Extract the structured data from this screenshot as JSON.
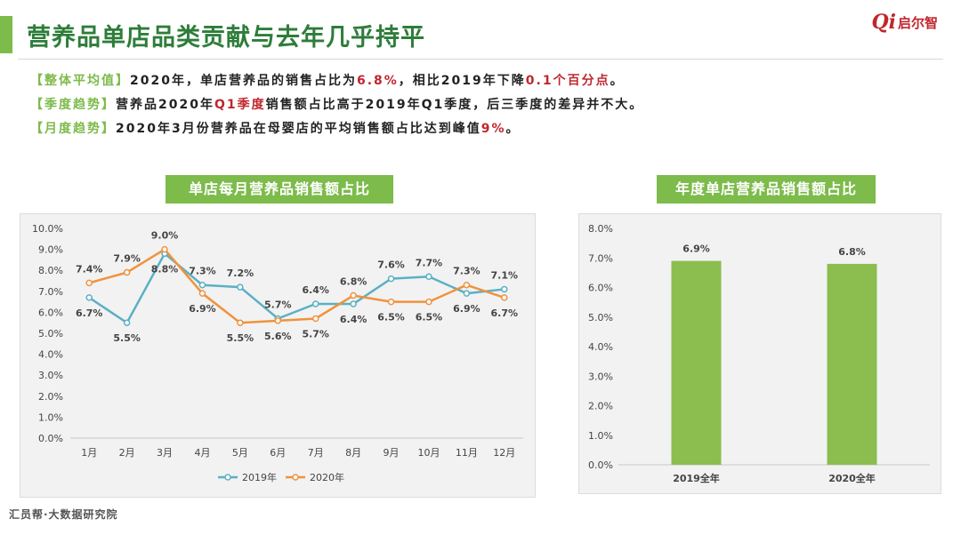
{
  "title": "营养品单店品类贡献与去年几乎持平",
  "logo": {
    "mark": "Qi",
    "text": "启尔智"
  },
  "summary": [
    {
      "tag": "【整体平均值】",
      "parts": [
        {
          "t": "2020年，单店营养品的销售占比为",
          "hl": false
        },
        {
          "t": "6.8%",
          "hl": true
        },
        {
          "t": "，相比2019年下降",
          "hl": false
        },
        {
          "t": "0.1个百分点",
          "hl": true
        },
        {
          "t": "。",
          "hl": false
        }
      ]
    },
    {
      "tag": "【季度趋势】",
      "parts": [
        {
          "t": "营养品2020年",
          "hl": false
        },
        {
          "t": "Q1季度",
          "hl": true
        },
        {
          "t": "销售额占比高于2019年Q1季度，后三季度的差异并不大。",
          "hl": false
        }
      ]
    },
    {
      "tag": "【月度趋势】",
      "parts": [
        {
          "t": "2020年3月份营养品在母婴店的平均销售额占比达到峰值",
          "hl": false
        },
        {
          "t": "9%",
          "hl": true
        },
        {
          "t": "。",
          "hl": false
        }
      ]
    }
  ],
  "watermark": "汇员帮",
  "footer": "汇员帮·大数据研究院",
  "colors": {
    "green": "#7dbb4b",
    "red": "#c0272d",
    "blue": "#5bb0c4",
    "orange": "#f0923c",
    "bar": "#8cbd4f"
  },
  "chart_data": [
    {
      "type": "line",
      "title": "单店每月营养品销售额占比",
      "categories": [
        "1月",
        "2月",
        "3月",
        "4月",
        "5月",
        "6月",
        "7月",
        "8月",
        "9月",
        "10月",
        "11月",
        "12月"
      ],
      "yticks": [
        "0.0%",
        "1.0%",
        "2.0%",
        "3.0%",
        "4.0%",
        "5.0%",
        "6.0%",
        "7.0%",
        "8.0%",
        "9.0%",
        "10.0%"
      ],
      "ylim": [
        0,
        10
      ],
      "grid": false,
      "legend": "bottom",
      "series": [
        {
          "name": "2019年",
          "values": [
            6.7,
            5.5,
            8.8,
            7.3,
            7.2,
            5.7,
            6.4,
            6.4,
            7.6,
            7.7,
            6.9,
            7.1
          ],
          "labels": [
            "6.7%",
            "5.5%",
            "8.8%",
            "7.3%",
            "7.2%",
            "5.7%",
            "6.4%",
            "6.4%",
            "7.6%",
            "7.7%",
            "6.9%",
            "7.1%"
          ]
        },
        {
          "name": "2020年",
          "values": [
            7.4,
            7.9,
            9.0,
            6.9,
            5.5,
            5.6,
            5.7,
            6.8,
            6.5,
            6.5,
            7.3,
            6.7
          ],
          "labels": [
            "7.4%",
            "7.9%",
            "9.0%",
            "6.9%",
            "5.5%",
            "5.6%",
            "5.7%",
            "6.8%",
            "6.5%",
            "6.5%",
            "7.3%",
            "6.7%"
          ]
        }
      ]
    },
    {
      "type": "bar",
      "title": "年度单店营养品销售额占比",
      "categories": [
        "2019全年",
        "2020全年"
      ],
      "values": [
        6.9,
        6.8
      ],
      "labels": [
        "6.9%",
        "6.8%"
      ],
      "yticks": [
        "0.0%",
        "1.0%",
        "2.0%",
        "3.0%",
        "4.0%",
        "5.0%",
        "6.0%",
        "7.0%",
        "8.0%"
      ],
      "ylim": [
        0,
        8
      ],
      "grid": false
    }
  ]
}
